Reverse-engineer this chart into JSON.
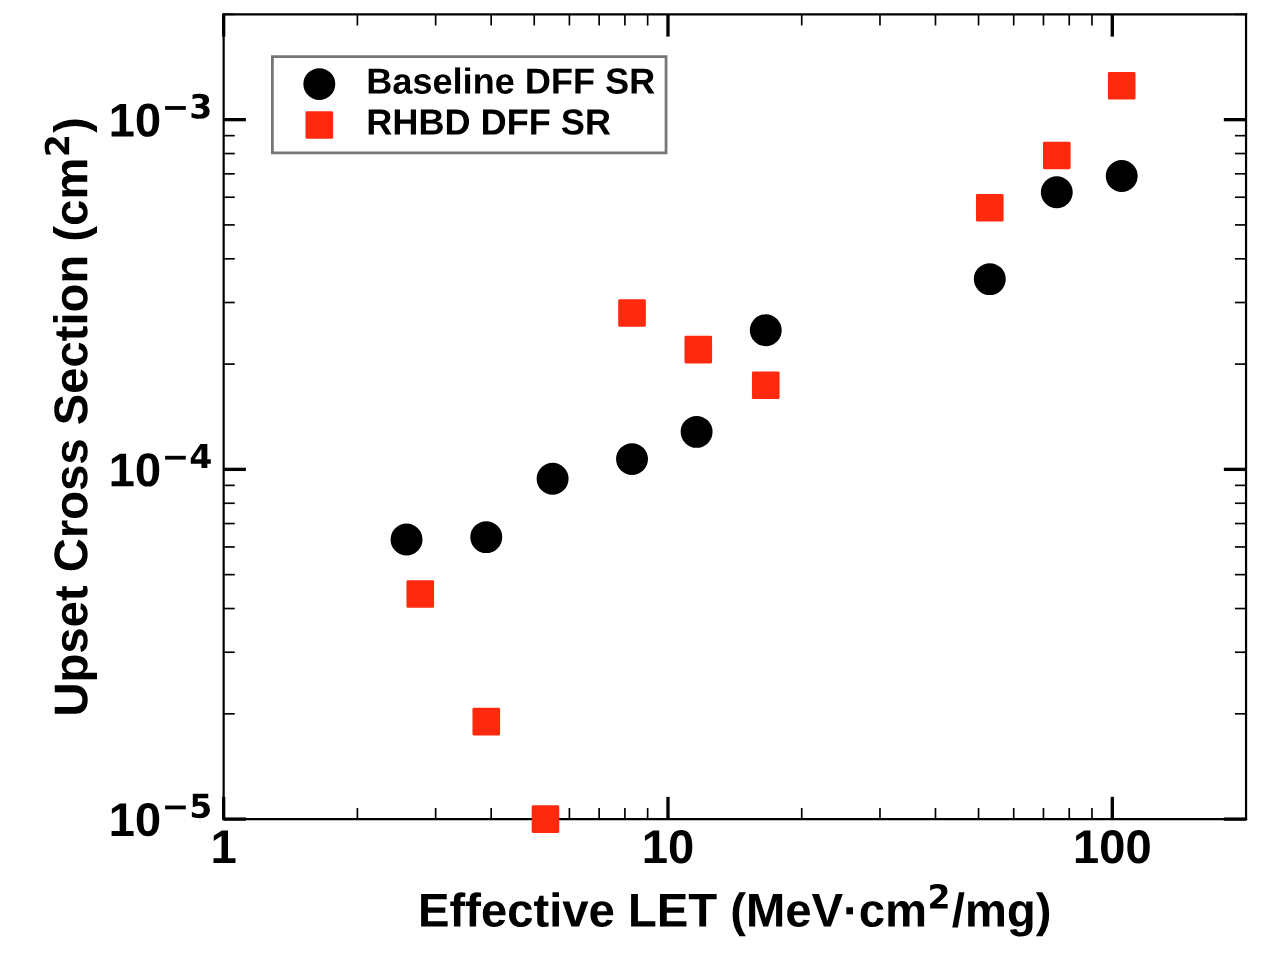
{
  "chart_data": {
    "type": "scatter",
    "xlabel": "Effective LET (MeV·cm$^{2}$/mg)",
    "ylabel": "Upset Cross Section (cm$^{2}$)",
    "log": "xy",
    "xlim": [
      1,
      200
    ],
    "ylim": [
      1e-05,
      0.002
    ],
    "xticks": [
      1,
      10,
      100
    ],
    "yticks": [
      {
        "value": 1e-05,
        "label": "10$^{−5}$"
      },
      {
        "value": 0.0001,
        "label": "10$^{−4}$"
      },
      {
        "value": 0.001,
        "label": "10$^{−3}$"
      }
    ],
    "grid": false,
    "legend": "top left",
    "series": [
      {
        "name": "Baseline DFF SR",
        "color": "#000000",
        "marker": "circle",
        "x": [
          2.58,
          3.9,
          5.5,
          8.3,
          11.6,
          16.6,
          53,
          75,
          105
        ],
        "values": [
          6.3e-05,
          6.4e-05,
          9.4e-05,
          0.000107,
          0.000128,
          0.00025,
          0.00035,
          0.00062,
          0.00069
        ]
      },
      {
        "name": "RHBD DFF SR",
        "color": "#ff2a0e",
        "marker": "square",
        "x": [
          2.77,
          3.9,
          5.3,
          8.3,
          11.7,
          16.6,
          53,
          75,
          105
        ],
        "values": [
          4.4e-05,
          1.9e-05,
          1e-05,
          0.00028,
          0.00022,
          0.000174,
          0.00056,
          0.00079,
          0.00125
        ]
      }
    ]
  }
}
